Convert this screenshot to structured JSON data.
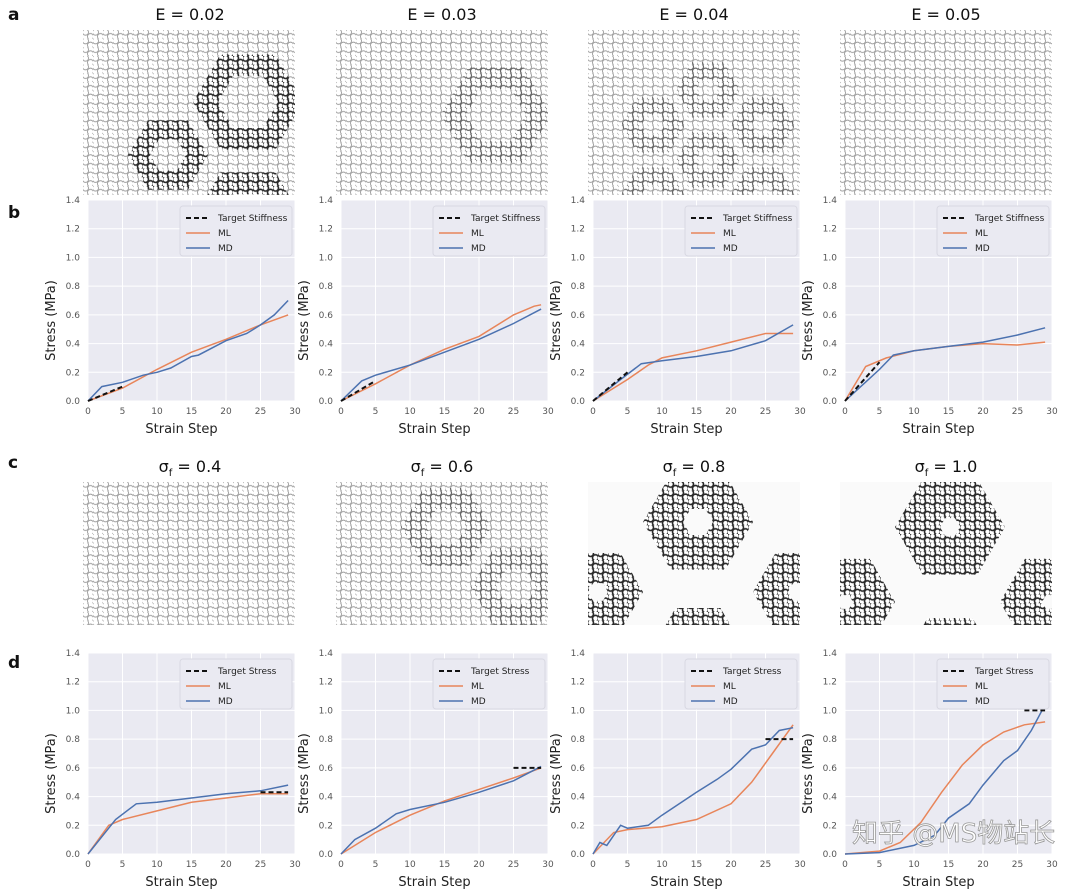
{
  "panel_labels": [
    "a",
    "b",
    "c",
    "d"
  ],
  "row_a_titles": [
    "E = 0.02",
    "E = 0.03",
    "E = 0.04",
    "E = 0.05"
  ],
  "row_c_titles": [
    {
      "sym": "σ",
      "sub": "f",
      "rest": " = 0.4"
    },
    {
      "sym": "σ",
      "sub": "f",
      "rest": " = 0.6"
    },
    {
      "sym": "σ",
      "sub": "f",
      "rest": " = 0.8"
    },
    {
      "sym": "σ",
      "sub": "f",
      "rest": " = 1.0"
    }
  ],
  "watermark": "知乎 @MS物站长",
  "colors": {
    "ml": "#e8855a",
    "md": "#4c72b0",
    "target": "#111111",
    "plot_bg": "#eaeaf2",
    "grid": "#ffffff"
  },
  "chart_data": [
    {
      "type": "line",
      "row": "b",
      "xlabel": "Strain Step",
      "ylabel": "Stress (MPa)",
      "xlim": [
        0,
        30
      ],
      "ylim": [
        0,
        1.4
      ],
      "xticks": [
        0,
        5,
        10,
        15,
        20,
        25,
        30
      ],
      "yticks": [
        "0.0",
        "0.2",
        "0.4",
        "0.6",
        "0.8",
        "1.0",
        "1.2",
        "1.4"
      ],
      "grid": true,
      "legend": "top-right",
      "series": [
        {
          "name": "Target Stiffness",
          "style": "dashed",
          "x": [
            0,
            5
          ],
          "y": [
            0,
            0.1
          ]
        },
        {
          "name": "ML",
          "x": [
            0,
            5,
            10,
            15,
            20,
            25,
            29
          ],
          "y": [
            0,
            0.09,
            0.22,
            0.34,
            0.43,
            0.53,
            0.6
          ]
        },
        {
          "name": "MD",
          "x": [
            0,
            2,
            5,
            8,
            10,
            12,
            15,
            16,
            20,
            23,
            25,
            27,
            29
          ],
          "y": [
            0,
            0.1,
            0.13,
            0.18,
            0.2,
            0.23,
            0.31,
            0.32,
            0.42,
            0.47,
            0.53,
            0.6,
            0.7
          ]
        }
      ]
    },
    {
      "type": "line",
      "row": "b",
      "xlabel": "Strain Step",
      "ylabel": "Stress (MPa)",
      "xlim": [
        0,
        30
      ],
      "ylim": [
        0,
        1.4
      ],
      "xticks": [
        0,
        5,
        10,
        15,
        20,
        25,
        30
      ],
      "yticks": [
        "0.0",
        "0.2",
        "0.4",
        "0.6",
        "0.8",
        "1.0",
        "1.2",
        "1.4"
      ],
      "grid": true,
      "legend": "top-right",
      "series": [
        {
          "name": "Target Stiffness",
          "style": "dashed",
          "x": [
            0,
            5
          ],
          "y": [
            0,
            0.14
          ]
        },
        {
          "name": "ML",
          "x": [
            0,
            5,
            10,
            15,
            20,
            25,
            28,
            29
          ],
          "y": [
            0,
            0.12,
            0.25,
            0.36,
            0.45,
            0.6,
            0.66,
            0.67
          ]
        },
        {
          "name": "MD",
          "x": [
            0,
            3,
            5,
            10,
            15,
            20,
            25,
            29
          ],
          "y": [
            0,
            0.14,
            0.18,
            0.25,
            0.34,
            0.43,
            0.54,
            0.64
          ]
        }
      ]
    },
    {
      "type": "line",
      "row": "b",
      "xlabel": "Strain Step",
      "ylabel": "Stress (MPa)",
      "xlim": [
        0,
        30
      ],
      "ylim": [
        0,
        1.4
      ],
      "xticks": [
        0,
        5,
        10,
        15,
        20,
        25,
        30
      ],
      "yticks": [
        "0.0",
        "0.2",
        "0.4",
        "0.6",
        "0.8",
        "1.0",
        "1.2",
        "1.4"
      ],
      "grid": true,
      "legend": "top-right",
      "series": [
        {
          "name": "Target Stiffness",
          "style": "dashed",
          "x": [
            0,
            5
          ],
          "y": [
            0,
            0.2
          ]
        },
        {
          "name": "ML",
          "x": [
            0,
            5,
            8,
            10,
            15,
            20,
            25,
            29
          ],
          "y": [
            0,
            0.15,
            0.25,
            0.3,
            0.35,
            0.41,
            0.47,
            0.47
          ]
        },
        {
          "name": "MD",
          "x": [
            0,
            4,
            7,
            10,
            15,
            20,
            25,
            29
          ],
          "y": [
            0,
            0.15,
            0.26,
            0.28,
            0.31,
            0.35,
            0.42,
            0.53
          ]
        }
      ]
    },
    {
      "type": "line",
      "row": "b",
      "xlabel": "Strain Step",
      "ylabel": "Stress (MPa)",
      "xlim": [
        0,
        30
      ],
      "ylim": [
        0,
        1.4
      ],
      "xticks": [
        0,
        5,
        10,
        15,
        20,
        25,
        30
      ],
      "yticks": [
        "0.0",
        "0.2",
        "0.4",
        "0.6",
        "0.8",
        "1.0",
        "1.2",
        "1.4"
      ],
      "grid": true,
      "legend": "top-right",
      "series": [
        {
          "name": "Target Stiffness",
          "style": "dashed",
          "x": [
            0,
            5
          ],
          "y": [
            0,
            0.27
          ]
        },
        {
          "name": "ML",
          "x": [
            0,
            3,
            6,
            10,
            15,
            20,
            25,
            29
          ],
          "y": [
            0,
            0.24,
            0.3,
            0.35,
            0.38,
            0.4,
            0.39,
            0.41
          ]
        },
        {
          "name": "MD",
          "x": [
            0,
            5,
            7,
            10,
            15,
            20,
            25,
            29
          ],
          "y": [
            0,
            0.22,
            0.32,
            0.35,
            0.38,
            0.41,
            0.46,
            0.51
          ]
        }
      ]
    },
    {
      "type": "line",
      "row": "d",
      "xlabel": "Strain Step",
      "ylabel": "Stress (MPa)",
      "xlim": [
        0,
        30
      ],
      "ylim": [
        0,
        1.4
      ],
      "xticks": [
        0,
        5,
        10,
        15,
        20,
        25,
        30
      ],
      "yticks": [
        "0.0",
        "0.2",
        "0.4",
        "0.6",
        "0.8",
        "1.0",
        "1.2",
        "1.4"
      ],
      "grid": true,
      "legend": "top-right",
      "series": [
        {
          "name": "Target Stress",
          "style": "dashed",
          "x": [
            25,
            29
          ],
          "y": [
            0.43,
            0.43
          ]
        },
        {
          "name": "ML",
          "x": [
            0,
            3,
            5,
            10,
            15,
            20,
            25,
            29
          ],
          "y": [
            0,
            0.2,
            0.24,
            0.3,
            0.36,
            0.39,
            0.42,
            0.42
          ]
        },
        {
          "name": "MD",
          "x": [
            0,
            2,
            4,
            7,
            10,
            15,
            20,
            25,
            29
          ],
          "y": [
            0,
            0.12,
            0.24,
            0.35,
            0.36,
            0.39,
            0.42,
            0.44,
            0.48
          ]
        }
      ]
    },
    {
      "type": "line",
      "row": "d",
      "xlabel": "Strain Step",
      "ylabel": "Stress (MPa)",
      "xlim": [
        0,
        30
      ],
      "ylim": [
        0,
        1.4
      ],
      "xticks": [
        0,
        5,
        10,
        15,
        20,
        25,
        30
      ],
      "yticks": [
        "0.0",
        "0.2",
        "0.4",
        "0.6",
        "0.8",
        "1.0",
        "1.2",
        "1.4"
      ],
      "grid": true,
      "legend": "top-right",
      "series": [
        {
          "name": "Target Stress",
          "style": "dashed",
          "x": [
            25,
            29
          ],
          "y": [
            0.6,
            0.6
          ]
        },
        {
          "name": "ML",
          "x": [
            0,
            5,
            10,
            15,
            20,
            25,
            29
          ],
          "y": [
            0,
            0.15,
            0.27,
            0.37,
            0.45,
            0.53,
            0.6
          ]
        },
        {
          "name": "MD",
          "x": [
            0,
            2,
            5,
            8,
            10,
            15,
            20,
            25,
            29
          ],
          "y": [
            0,
            0.1,
            0.18,
            0.28,
            0.31,
            0.36,
            0.43,
            0.51,
            0.61
          ]
        }
      ]
    },
    {
      "type": "line",
      "row": "d",
      "xlabel": "Strain Step",
      "ylabel": "Stress (MPa)",
      "xlim": [
        0,
        30
      ],
      "ylim": [
        0,
        1.4
      ],
      "xticks": [
        0,
        5,
        10,
        15,
        20,
        25,
        30
      ],
      "yticks": [
        "0.0",
        "0.2",
        "0.4",
        "0.6",
        "0.8",
        "1.0",
        "1.2",
        "1.4"
      ],
      "grid": true,
      "legend": "top-right",
      "series": [
        {
          "name": "Target Stress",
          "style": "dashed",
          "x": [
            25,
            29
          ],
          "y": [
            0.8,
            0.8
          ]
        },
        {
          "name": "ML",
          "x": [
            0,
            3,
            5,
            10,
            15,
            20,
            23,
            26,
            29
          ],
          "y": [
            0,
            0.15,
            0.17,
            0.19,
            0.24,
            0.35,
            0.5,
            0.7,
            0.9
          ]
        },
        {
          "name": "MD",
          "x": [
            0,
            1,
            2,
            4,
            5,
            8,
            10,
            15,
            18,
            20,
            23,
            25,
            27,
            29
          ],
          "y": [
            0,
            0.08,
            0.06,
            0.2,
            0.18,
            0.2,
            0.27,
            0.43,
            0.52,
            0.59,
            0.73,
            0.76,
            0.86,
            0.88
          ]
        }
      ]
    },
    {
      "type": "line",
      "row": "d",
      "xlabel": "Strain Step",
      "ylabel": "Stress (MPa)",
      "xlim": [
        0,
        30
      ],
      "ylim": [
        0,
        1.4
      ],
      "xticks": [
        0,
        5,
        10,
        15,
        20,
        25,
        30
      ],
      "yticks": [
        "0.0",
        "0.2",
        "0.4",
        "0.6",
        "0.8",
        "1.0",
        "1.2",
        "1.4"
      ],
      "grid": true,
      "legend": "top-right",
      "series": [
        {
          "name": "Target Stress",
          "style": "dashed",
          "x": [
            26,
            29
          ],
          "y": [
            1.0,
            1.0
          ]
        },
        {
          "name": "ML",
          "x": [
            0,
            5,
            8,
            11,
            14,
            17,
            20,
            23,
            26,
            29
          ],
          "y": [
            0,
            0.02,
            0.08,
            0.22,
            0.43,
            0.62,
            0.76,
            0.85,
            0.9,
            0.92
          ]
        },
        {
          "name": "MD",
          "x": [
            0,
            5,
            10,
            13,
            15,
            18,
            20,
            23,
            25,
            27,
            29
          ],
          "y": [
            0,
            0.01,
            0.06,
            0.13,
            0.25,
            0.35,
            0.48,
            0.65,
            0.72,
            0.86,
            1.04
          ]
        }
      ]
    }
  ]
}
